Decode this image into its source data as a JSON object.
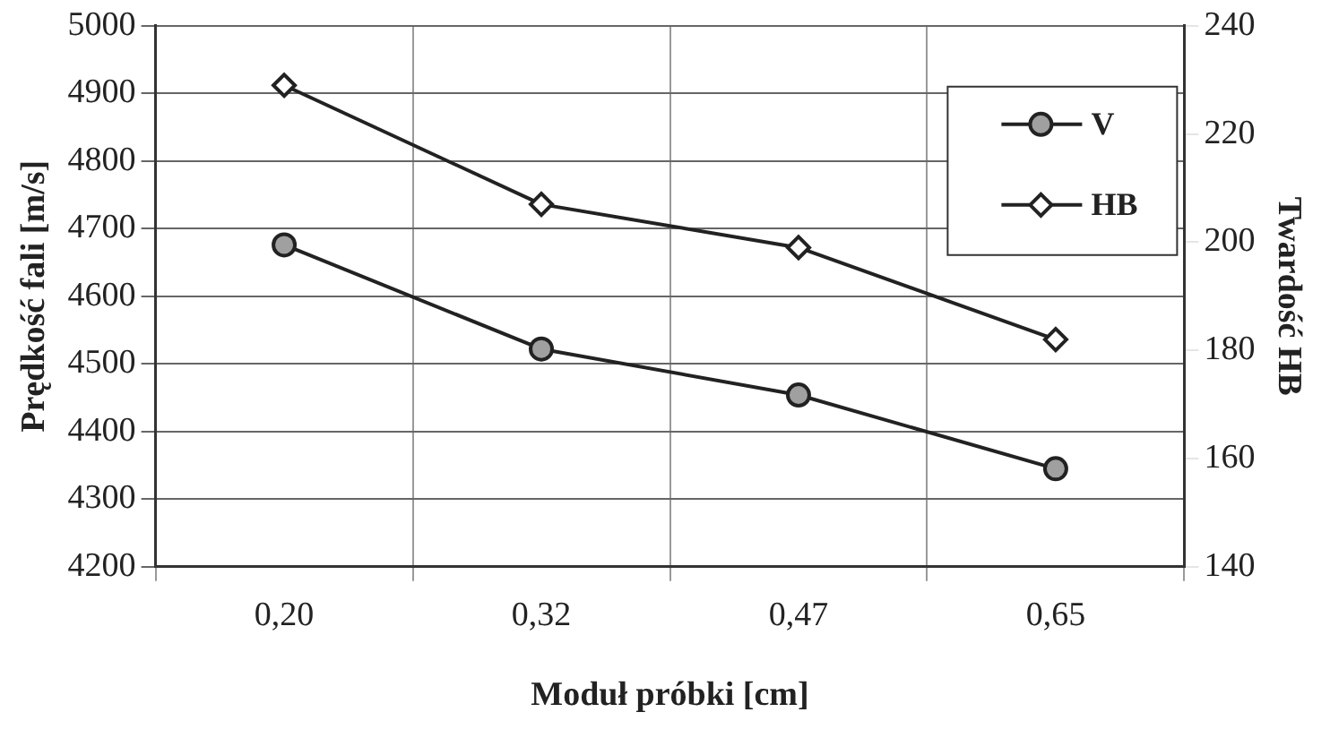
{
  "chart_data": {
    "type": "line",
    "xlabel": "Moduł próbki [cm]",
    "ylabel": "Prędkość fali [m/s]",
    "y2label": "Twardość HB",
    "categories": [
      "0,20",
      "0,32",
      "0,47",
      "0,65"
    ],
    "series": [
      {
        "name": "V",
        "color": "#222222",
        "marker": "circle",
        "values": [
          4676,
          4522,
          4454,
          4345
        ]
      },
      {
        "name": "HB",
        "color": "#222222",
        "marker": "diamond",
        "axis": "y2",
        "values": [
          229,
          207,
          199,
          182
        ]
      }
    ],
    "ylim": [
      4200,
      5000
    ],
    "yticks": [
      4200,
      4300,
      4400,
      4500,
      4600,
      4700,
      4800,
      4900,
      5000
    ],
    "y2lim": [
      140,
      240
    ],
    "y2ticks": [
      140,
      160,
      180,
      200,
      220,
      240
    ],
    "grid": true,
    "legend": "top right"
  }
}
